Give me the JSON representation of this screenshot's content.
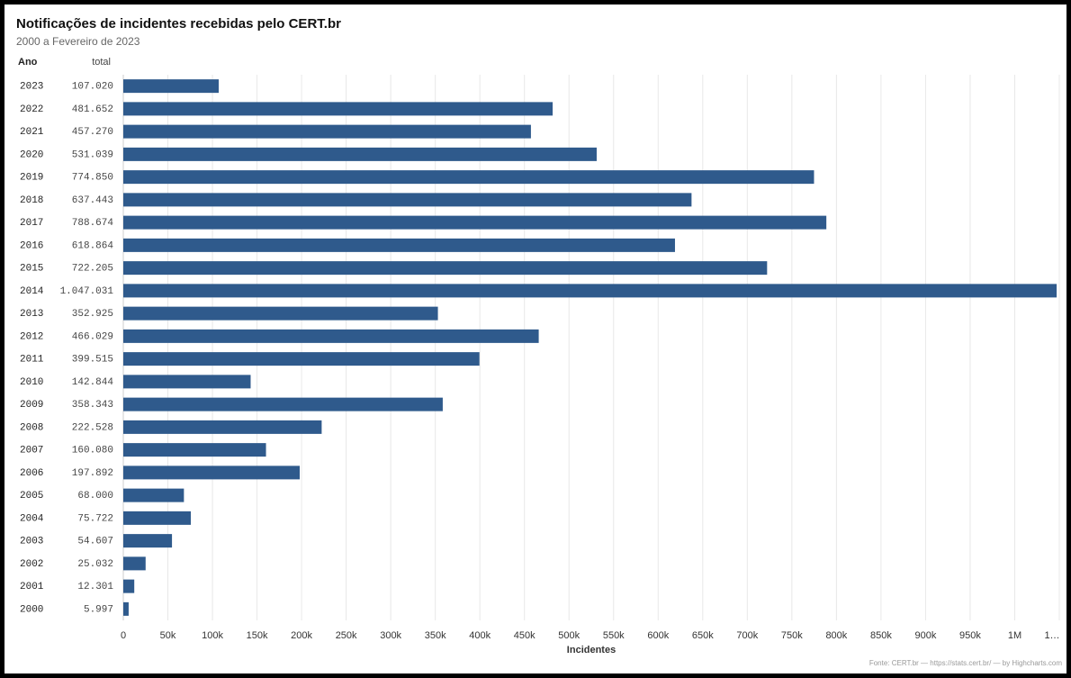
{
  "chart_data": {
    "type": "bar",
    "orientation": "horizontal",
    "title": "Notificações de incidentes recebidas pelo CERT.br",
    "subtitle": "2000 a Fevereiro de 2023",
    "category_header": "Ano",
    "value_header": "total",
    "x_label": "Incidentes",
    "credits": "Fonte: CERT.br — https://stats.cert.br/ — by Highcharts.com",
    "categories": [
      "2023",
      "2022",
      "2021",
      "2020",
      "2019",
      "2018",
      "2017",
      "2016",
      "2015",
      "2014",
      "2013",
      "2012",
      "2011",
      "2010",
      "2009",
      "2008",
      "2007",
      "2006",
      "2005",
      "2004",
      "2003",
      "2002",
      "2001",
      "2000"
    ],
    "values": [
      107020,
      481652,
      457270,
      531039,
      774850,
      637443,
      788674,
      618864,
      722205,
      1047031,
      352925,
      466029,
      399515,
      142844,
      358343,
      222528,
      160080,
      197892,
      68000,
      75722,
      54607,
      25032,
      12301,
      5997
    ],
    "value_labels": [
      "107.020",
      "481.652",
      "457.270",
      "531.039",
      "774.850",
      "637.443",
      "788.674",
      "618.864",
      "722.205",
      "1.047.031",
      "352.925",
      "466.029",
      "399.515",
      "142.844",
      "358.343",
      "222.528",
      "160.080",
      "197.892",
      "68.000",
      "75.722",
      "54.607",
      "25.032",
      "12.301",
      "5.997"
    ],
    "color": "#2f5a8c",
    "xlim": [
      0,
      1050000
    ],
    "xticks": [
      0,
      {
        "value": 50000,
        "label": "50k"
      },
      {
        "value": 100000,
        "label": "100k"
      },
      {
        "value": 150000,
        "label": "150k"
      },
      {
        "value": 200000,
        "label": "200k"
      },
      {
        "value": 250000,
        "label": "250k"
      },
      {
        "value": 300000,
        "label": "300k"
      },
      {
        "value": 350000,
        "label": "350k"
      },
      {
        "value": 400000,
        "label": "400k"
      },
      {
        "value": 450000,
        "label": "450k"
      },
      {
        "value": 500000,
        "label": "500k"
      },
      {
        "value": 550000,
        "label": "550k"
      },
      {
        "value": 600000,
        "label": "600k"
      },
      {
        "value": 650000,
        "label": "650k"
      },
      {
        "value": 700000,
        "label": "700k"
      },
      {
        "value": 750000,
        "label": "750k"
      },
      {
        "value": 800000,
        "label": "800k"
      },
      {
        "value": 850000,
        "label": "850k"
      },
      {
        "value": 900000,
        "label": "900k"
      },
      {
        "value": 950000,
        "label": "950k"
      },
      {
        "value": 1000000,
        "label": "1M"
      },
      {
        "value": 1050000,
        "label": "1…"
      }
    ],
    "grid": true
  }
}
